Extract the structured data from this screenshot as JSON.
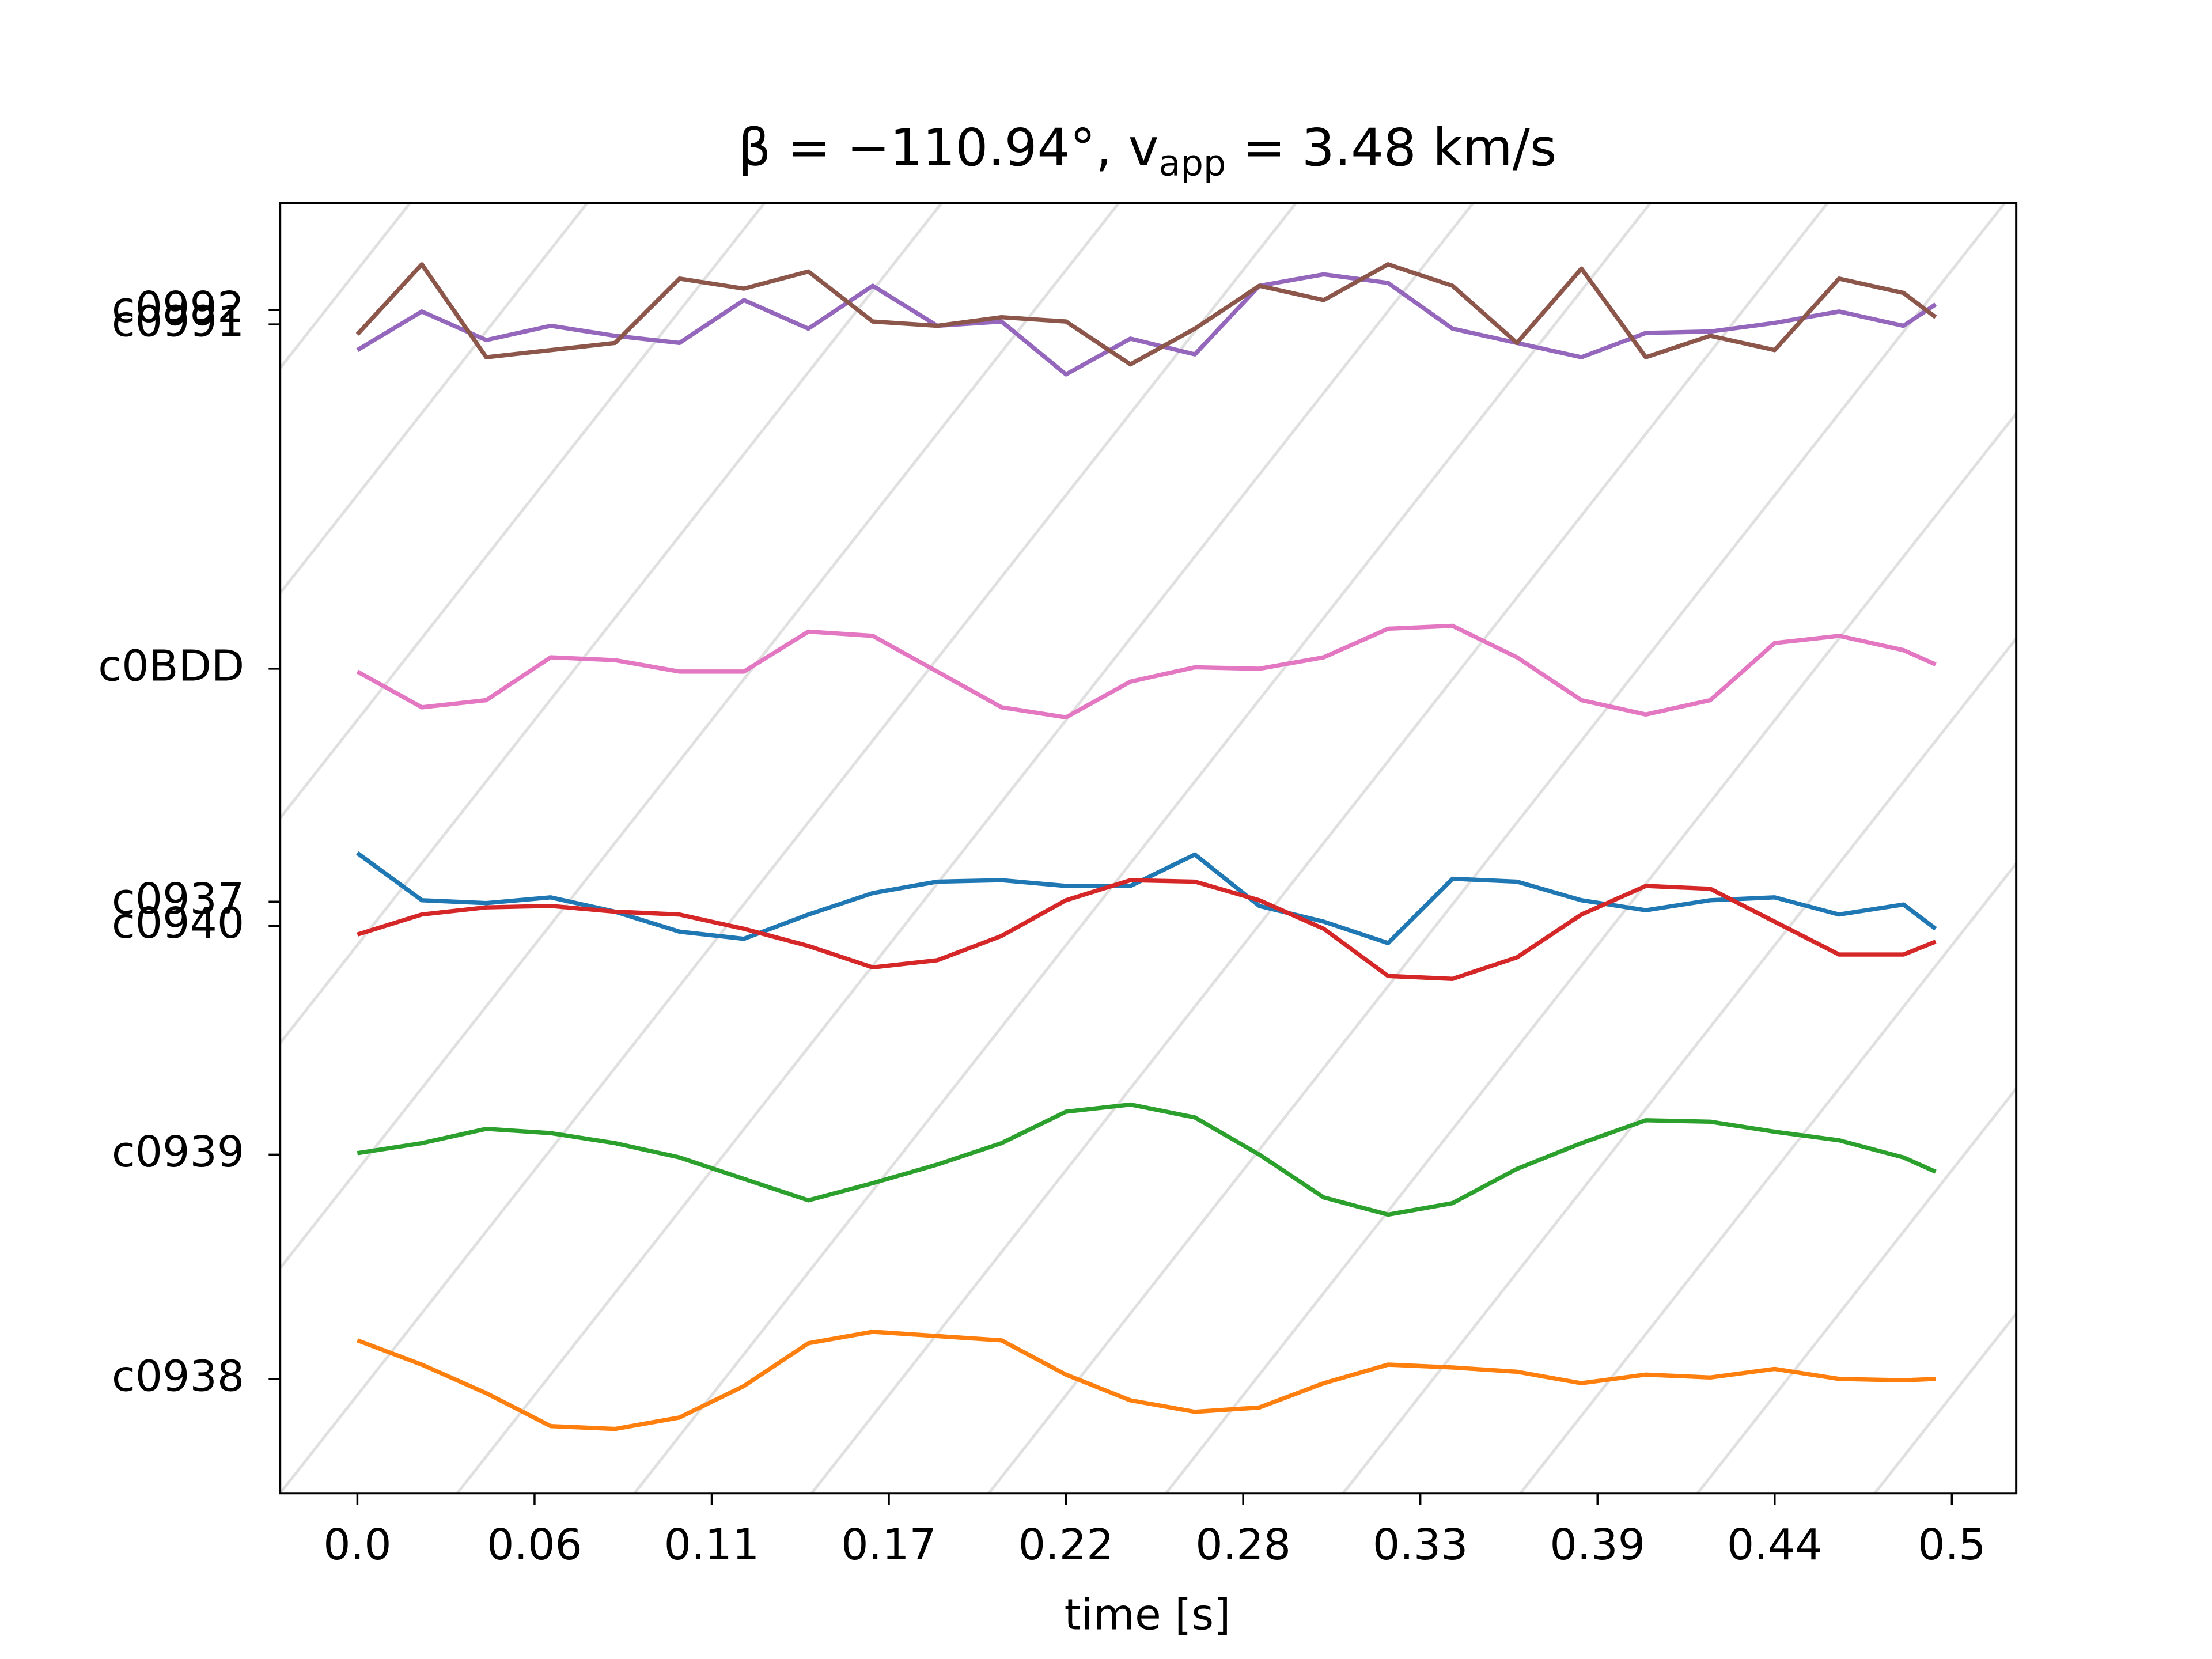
{
  "chart_data": {
    "type": "line",
    "title": [
      "β = −110.94°, v",
      "app",
      " = 3.48 km/s"
    ],
    "x_label": "time [s]",
    "x": [
      0,
      0.02,
      0.04,
      0.06,
      0.08,
      0.1,
      0.12,
      0.14,
      0.16,
      0.18,
      0.2,
      0.22,
      0.24,
      0.26,
      0.28,
      0.3,
      0.32,
      0.34,
      0.36,
      0.38,
      0.4,
      0.42,
      0.44,
      0.46,
      0.48,
      0.49
    ],
    "xlim": [
      -0.024,
      0.515
    ],
    "xticks": [
      {
        "value": 0,
        "label": "0.0"
      },
      {
        "value": 0.055,
        "label": "0.06"
      },
      {
        "value": 0.11,
        "label": "0.11"
      },
      {
        "value": 0.165,
        "label": "0.17"
      },
      {
        "value": 0.22,
        "label": "0.22"
      },
      {
        "value": 0.275,
        "label": "0.28"
      },
      {
        "value": 0.33,
        "label": "0.33"
      },
      {
        "value": 0.385,
        "label": "0.39"
      },
      {
        "value": 0.44,
        "label": "0.44"
      },
      {
        "value": 0.495,
        "label": "0.5"
      }
    ],
    "ylim": [
      0,
      9.03
    ],
    "yticks": [
      {
        "value": 0.8,
        "label": "c0938"
      },
      {
        "value": 2.37,
        "label": "c0939"
      },
      {
        "value": 3.97,
        "label": "c0940"
      },
      {
        "value": 4.14,
        "label": "c0937"
      },
      {
        "value": 5.77,
        "label": "c0BDD"
      },
      {
        "value": 8.18,
        "label": "c0991"
      },
      {
        "value": 8.28,
        "label": "c0992"
      }
    ],
    "series": [
      {
        "color": "#1f77b4",
        "values": [
          4.48,
          4.15,
          4.13,
          4.17,
          4.07,
          3.93,
          3.88,
          4.05,
          4.2,
          4.28,
          4.29,
          4.25,
          4.25,
          4.47,
          4.11,
          4.0,
          3.85,
          4.3,
          4.28,
          4.15,
          4.08,
          4.15,
          4.17,
          4.05,
          4.12,
          3.95
        ]
      },
      {
        "color": "#ff7f0e",
        "values": [
          1.07,
          0.9,
          0.7,
          0.47,
          0.45,
          0.53,
          0.75,
          1.05,
          1.13,
          1.1,
          1.07,
          0.83,
          0.65,
          0.57,
          0.6,
          0.77,
          0.9,
          0.88,
          0.85,
          0.77,
          0.83,
          0.81,
          0.87,
          0.8,
          0.79,
          0.8
        ]
      },
      {
        "color": "#2ca02c",
        "values": [
          2.38,
          2.45,
          2.55,
          2.52,
          2.45,
          2.35,
          2.2,
          2.05,
          2.17,
          2.3,
          2.45,
          2.67,
          2.72,
          2.63,
          2.37,
          2.07,
          1.95,
          2.03,
          2.27,
          2.45,
          2.61,
          2.6,
          2.53,
          2.47,
          2.35,
          2.25
        ]
      },
      {
        "color": "#d62728",
        "values": [
          3.91,
          4.05,
          4.1,
          4.11,
          4.07,
          4.05,
          3.95,
          3.83,
          3.68,
          3.73,
          3.9,
          4.15,
          4.29,
          4.28,
          4.15,
          3.95,
          3.62,
          3.6,
          3.75,
          4.05,
          4.25,
          4.23,
          4.0,
          3.77,
          3.77,
          3.86
        ]
      },
      {
        "color": "#9467bd",
        "values": [
          8.0,
          8.27,
          8.07,
          8.17,
          8.1,
          8.05,
          8.35,
          8.15,
          8.45,
          8.17,
          8.2,
          7.83,
          8.08,
          7.97,
          8.45,
          8.53,
          8.47,
          8.15,
          8.05,
          7.95,
          8.12,
          8.13,
          8.19,
          8.27,
          8.17,
          8.32
        ]
      },
      {
        "color": "#8c564b",
        "values": [
          8.11,
          8.6,
          7.95,
          8.0,
          8.05,
          8.5,
          8.43,
          8.55,
          8.2,
          8.17,
          8.23,
          8.2,
          7.9,
          8.15,
          8.45,
          8.35,
          8.6,
          8.45,
          8.05,
          8.57,
          7.95,
          8.1,
          8.0,
          8.5,
          8.4,
          8.23
        ]
      },
      {
        "color": "#e377c2",
        "values": [
          5.75,
          5.5,
          5.55,
          5.85,
          5.83,
          5.75,
          5.75,
          6.03,
          6.0,
          5.75,
          5.5,
          5.43,
          5.68,
          5.78,
          5.77,
          5.85,
          6.05,
          6.07,
          5.85,
          5.55,
          5.45,
          5.55,
          5.95,
          6.0,
          5.9,
          5.8
        ]
      }
    ]
  }
}
